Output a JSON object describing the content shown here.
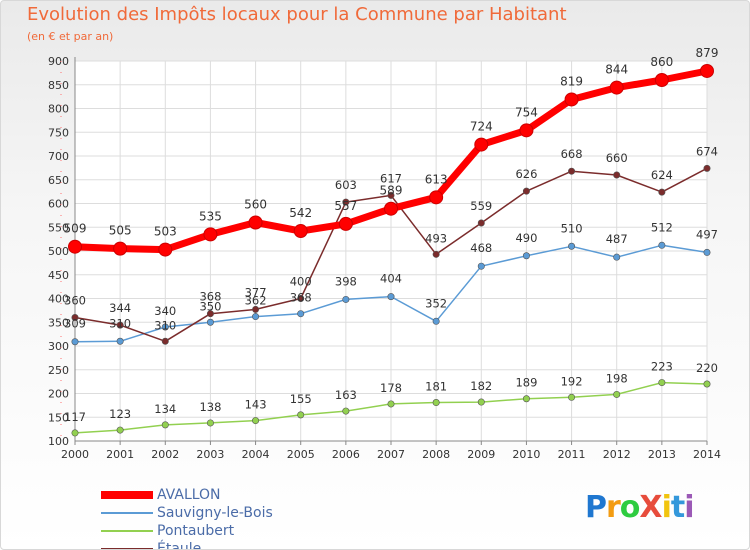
{
  "title": "Evolution des Impôts locaux pour la Commune par Habitant",
  "subtitle": "(en € et par an)",
  "brand": "ProXiti",
  "chart_data": {
    "type": "line",
    "x": [
      "2000",
      "2001",
      "2002",
      "2003",
      "2004",
      "2005",
      "2006",
      "2007",
      "2008",
      "2009",
      "2010",
      "2011",
      "2012",
      "2013",
      "2014"
    ],
    "ylim": [
      100,
      900
    ],
    "yticks": [
      100,
      150,
      200,
      250,
      300,
      350,
      400,
      450,
      500,
      550,
      600,
      650,
      700,
      750,
      800,
      850,
      900
    ],
    "grid": true,
    "legend_position": "bottom-left",
    "series": [
      {
        "name": "AVALLON",
        "color": "#ff0000",
        "values": [
          509,
          505,
          503,
          535,
          560,
          542,
          557,
          589,
          613,
          724,
          754,
          819,
          844,
          860,
          879
        ]
      },
      {
        "name": "Sauvigny-le-Bois",
        "color": "#5b9bd5",
        "values": [
          309,
          310,
          340,
          350,
          362,
          368,
          398,
          404,
          352,
          468,
          490,
          510,
          487,
          512,
          497
        ]
      },
      {
        "name": "Pontaubert",
        "color": "#92d050",
        "values": [
          117,
          123,
          134,
          138,
          143,
          155,
          163,
          178,
          181,
          182,
          189,
          192,
          198,
          223,
          220
        ]
      },
      {
        "name": "Étaule",
        "color": "#7b2c2c",
        "values": [
          360,
          344,
          310,
          368,
          377,
          400,
          603,
          617,
          493,
          559,
          626,
          668,
          660,
          624,
          674
        ]
      }
    ]
  }
}
